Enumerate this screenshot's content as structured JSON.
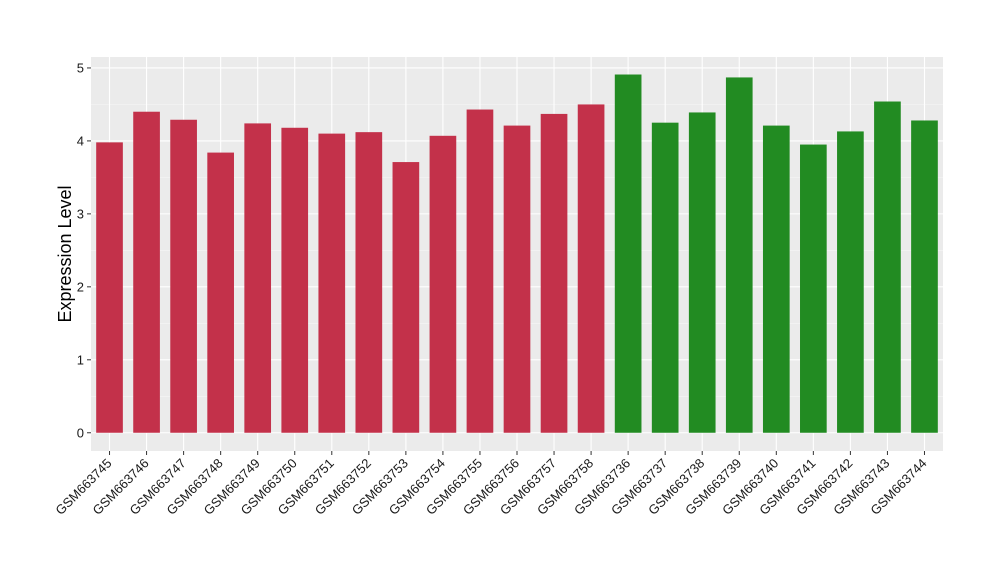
{
  "chart_data": {
    "type": "bar",
    "title": "",
    "xlabel": "",
    "ylabel": "Expression Level",
    "ylim": [
      -0.25,
      5.15
    ],
    "yticks": [
      0,
      1,
      2,
      3,
      4,
      5
    ],
    "grid": true,
    "legend": "none",
    "colors": {
      "panel_background": "#ebebeb",
      "grid_major": "#ffffff",
      "group_1": "#c3314a",
      "group_2": "#228b22"
    },
    "categories": [
      "GSM663745",
      "GSM663746",
      "GSM663747",
      "GSM663748",
      "GSM663749",
      "GSM663750",
      "GSM663751",
      "GSM663752",
      "GSM663753",
      "GSM663754",
      "GSM663755",
      "GSM663756",
      "GSM663757",
      "GSM663758",
      "GSM663736",
      "GSM663737",
      "GSM663738",
      "GSM663739",
      "GSM663740",
      "GSM663741",
      "GSM663742",
      "GSM663743",
      "GSM663744"
    ],
    "values": [
      3.98,
      4.4,
      4.29,
      3.84,
      4.24,
      4.18,
      4.1,
      4.12,
      3.71,
      4.07,
      4.43,
      4.21,
      4.37,
      4.5,
      4.91,
      4.25,
      4.39,
      4.87,
      4.21,
      3.95,
      4.13,
      4.54,
      4.28
    ],
    "bar_groups": [
      "group_1",
      "group_1",
      "group_1",
      "group_1",
      "group_1",
      "group_1",
      "group_1",
      "group_1",
      "group_1",
      "group_1",
      "group_1",
      "group_1",
      "group_1",
      "group_1",
      "group_2",
      "group_2",
      "group_2",
      "group_2",
      "group_2",
      "group_2",
      "group_2",
      "group_2",
      "group_2"
    ]
  }
}
